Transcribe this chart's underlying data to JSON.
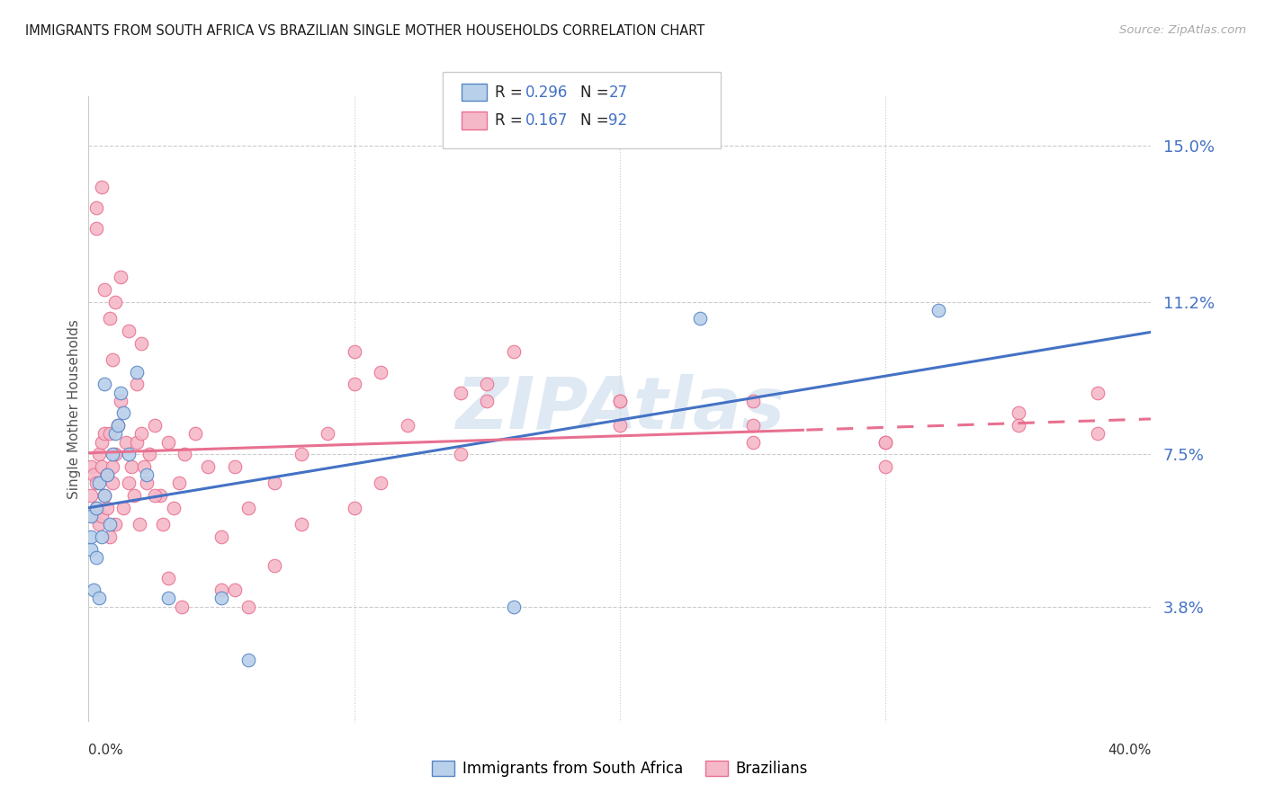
{
  "title": "IMMIGRANTS FROM SOUTH AFRICA VS BRAZILIAN SINGLE MOTHER HOUSEHOLDS CORRELATION CHART",
  "source": "Source: ZipAtlas.com",
  "ylabel": "Single Mother Households",
  "ytick_vals": [
    0.038,
    0.075,
    0.112,
    0.15
  ],
  "ytick_labels": [
    "3.8%",
    "7.5%",
    "11.2%",
    "15.0%"
  ],
  "xmin": 0.0,
  "xmax": 0.4,
  "ymin": 0.01,
  "ymax": 0.162,
  "r_blue": "0.296",
  "n_blue": "27",
  "r_pink": "0.167",
  "n_pink": "92",
  "color_blue_fill": "#b8d0ea",
  "color_blue_edge": "#5585c5",
  "color_pink_fill": "#f5b8c8",
  "color_pink_edge": "#e87090",
  "line_blue": "#4472c4",
  "line_pink": "#e87090",
  "watermark": "ZIPAtlas",
  "blue_x": [
    0.001,
    0.001,
    0.001,
    0.002,
    0.003,
    0.003,
    0.004,
    0.005,
    0.006,
    0.007,
    0.008,
    0.009,
    0.01,
    0.011,
    0.012,
    0.013,
    0.015,
    0.018,
    0.022,
    0.03,
    0.05,
    0.06,
    0.16,
    0.23,
    0.32,
    0.004,
    0.006
  ],
  "blue_y": [
    0.06,
    0.052,
    0.055,
    0.042,
    0.05,
    0.062,
    0.068,
    0.055,
    0.065,
    0.07,
    0.058,
    0.075,
    0.08,
    0.082,
    0.09,
    0.085,
    0.075,
    0.095,
    0.07,
    0.04,
    0.04,
    0.025,
    0.038,
    0.108,
    0.11,
    0.04,
    0.092
  ],
  "pink_x": [
    0.001,
    0.001,
    0.002,
    0.002,
    0.003,
    0.003,
    0.004,
    0.004,
    0.005,
    0.005,
    0.005,
    0.006,
    0.006,
    0.007,
    0.007,
    0.008,
    0.008,
    0.009,
    0.009,
    0.01,
    0.01,
    0.011,
    0.012,
    0.013,
    0.014,
    0.015,
    0.016,
    0.017,
    0.018,
    0.019,
    0.02,
    0.021,
    0.022,
    0.023,
    0.025,
    0.027,
    0.028,
    0.03,
    0.032,
    0.034,
    0.036,
    0.04,
    0.045,
    0.05,
    0.055,
    0.06,
    0.07,
    0.08,
    0.09,
    0.1,
    0.11,
    0.12,
    0.14,
    0.16,
    0.003,
    0.005,
    0.008,
    0.01,
    0.015,
    0.02,
    0.03,
    0.05,
    0.07,
    0.1,
    0.15,
    0.2,
    0.25,
    0.3,
    0.35,
    0.38,
    0.003,
    0.006,
    0.009,
    0.012,
    0.018,
    0.025,
    0.035,
    0.055,
    0.08,
    0.11,
    0.14,
    0.2,
    0.25,
    0.3,
    0.35,
    0.38,
    0.1,
    0.15,
    0.2,
    0.25,
    0.3,
    0.06
  ],
  "pink_y": [
    0.065,
    0.072,
    0.07,
    0.06,
    0.062,
    0.068,
    0.075,
    0.058,
    0.06,
    0.072,
    0.078,
    0.065,
    0.08,
    0.07,
    0.062,
    0.08,
    0.055,
    0.068,
    0.072,
    0.075,
    0.058,
    0.082,
    0.088,
    0.062,
    0.078,
    0.068,
    0.072,
    0.065,
    0.078,
    0.058,
    0.08,
    0.072,
    0.068,
    0.075,
    0.082,
    0.065,
    0.058,
    0.078,
    0.062,
    0.068,
    0.075,
    0.08,
    0.072,
    0.055,
    0.072,
    0.062,
    0.068,
    0.075,
    0.08,
    0.092,
    0.095,
    0.082,
    0.09,
    0.1,
    0.135,
    0.14,
    0.108,
    0.112,
    0.105,
    0.102,
    0.045,
    0.042,
    0.048,
    0.062,
    0.088,
    0.082,
    0.088,
    0.078,
    0.085,
    0.08,
    0.13,
    0.115,
    0.098,
    0.118,
    0.092,
    0.065,
    0.038,
    0.042,
    0.058,
    0.068,
    0.075,
    0.088,
    0.082,
    0.078,
    0.082,
    0.09,
    0.1,
    0.092,
    0.088,
    0.078,
    0.072,
    0.038
  ]
}
